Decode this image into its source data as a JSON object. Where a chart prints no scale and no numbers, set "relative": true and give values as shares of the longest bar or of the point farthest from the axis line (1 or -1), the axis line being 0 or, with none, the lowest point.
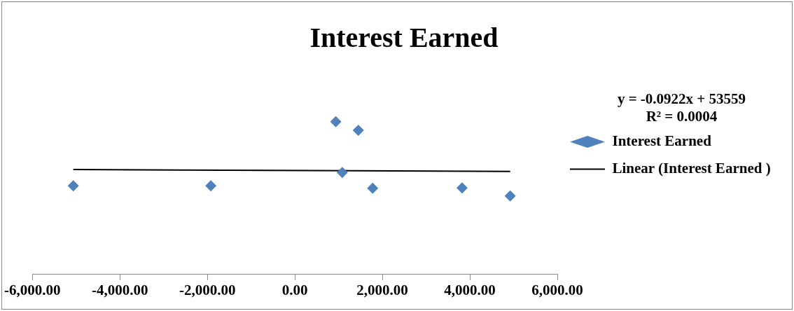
{
  "chart_data": {
    "type": "scatter",
    "title": "Interest Earned",
    "annotations": [
      "y = -0.0922x + 53559",
      "R² = 0.0004"
    ],
    "relative": true,
    "legend": "right",
    "marker": "diamond",
    "xlim": [
      -6000,
      6000
    ],
    "xticks": [
      {
        "value": -6000,
        "label": "-6,000.00"
      },
      {
        "value": -4000,
        "label": "-4,000.00"
      },
      {
        "value": -2000,
        "label": "-2,000.00"
      },
      {
        "value": 0,
        "label": "0.00"
      },
      {
        "value": 2000,
        "label": "2,000.00"
      },
      {
        "value": 4000,
        "label": "4,000.00"
      },
      {
        "value": 6000,
        "label": "6,000.00"
      }
    ],
    "series": [
      {
        "name": "Interest Earned",
        "color": "#4f81bd",
        "x": [
          -5065,
          -1921,
          935,
          1083,
          1450,
          1779,
          3822,
          4923
        ],
        "values": [
          0.58,
          0.58,
          1,
          0.667,
          0.944,
          0.564,
          0.567,
          0.514
        ]
      },
      {
        "type": "line",
        "name": "Linear (Interest Earned )",
        "color": "#000000",
        "marker": "none",
        "x": [
          -5065,
          4923
        ],
        "values": [
          0.687,
          0.674
        ]
      }
    ]
  }
}
